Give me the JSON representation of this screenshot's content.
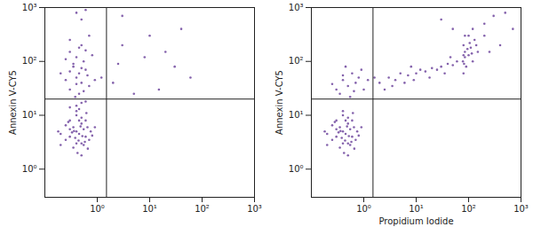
{
  "chart_data": [
    {
      "type": "scatter",
      "log": true,
      "color": "#5b2d90",
      "marker": "dot",
      "ylabel": "Annexin V-CY5",
      "xlim": [
        0.1,
        1000
      ],
      "ylim": [
        0.3,
        1000
      ],
      "xticks": [
        {
          "value": 1,
          "label": "10⁰"
        },
        {
          "value": 10,
          "label": "10¹"
        },
        {
          "value": 100,
          "label": "10²"
        },
        {
          "value": 1000,
          "label": "10³"
        }
      ],
      "yticks": [
        {
          "value": 1,
          "label": "10⁰"
        },
        {
          "value": 10,
          "label": "10¹"
        },
        {
          "value": 100,
          "label": "10²"
        },
        {
          "value": 1000,
          "label": "10³"
        }
      ],
      "quadrant_x": 1.5,
      "quadrant_y": 20,
      "x": [
        0.3,
        0.4,
        0.5,
        0.35,
        0.45,
        0.55,
        0.25,
        0.6,
        0.4,
        0.5,
        0.3,
        0.65,
        0.2,
        0.45,
        0.35,
        0.55,
        0.7,
        0.4,
        0.3,
        0.5,
        0.25,
        0.6,
        0.75,
        0.8,
        0.2,
        0.38,
        0.48,
        0.33,
        0.58,
        0.42,
        0.28,
        0.62,
        0.52,
        0.36,
        0.44,
        0.9,
        0.18,
        0.5,
        0.66,
        0.4,
        0.3,
        0.4,
        0.5,
        0.35,
        0.45,
        0.55,
        0.25,
        0.6,
        0.4,
        0.3,
        0.5,
        0.7,
        0.2,
        0.45,
        0.35,
        0.65,
        0.55,
        0.3,
        0.8,
        0.4,
        0.6,
        0.25,
        0.5,
        0.38,
        0.9,
        0.7,
        0.3,
        0.45,
        0.4,
        0.5,
        0.3,
        0.6,
        0.45,
        0.4,
        0.6,
        0.5,
        2,
        3,
        5,
        10,
        20,
        40,
        30,
        60,
        3,
        8,
        15,
        1.2,
        2.5
      ],
      "values": [
        4,
        5,
        3,
        6,
        4.5,
        5.5,
        3.5,
        4,
        3,
        7,
        5.5,
        6,
        4.5,
        8,
        2.5,
        2.8,
        3.5,
        10,
        8,
        9,
        6.5,
        8,
        5,
        4.2,
        2.8,
        3.8,
        6.2,
        4.8,
        3.2,
        2,
        7.5,
        11,
        4.1,
        5.1,
        3.4,
        6,
        5,
        1.8,
        2.4,
        12,
        30,
        50,
        40,
        80,
        60,
        100,
        45,
        70,
        120,
        150,
        200,
        35,
        60,
        25,
        90,
        55,
        28,
        250,
        130,
        38,
        160,
        110,
        75,
        22,
        45,
        300,
        65,
        180,
        15,
        17,
        14,
        18,
        13,
        800,
        900,
        600,
        40,
        200,
        25,
        300,
        150,
        400,
        80,
        50,
        700,
        120,
        30,
        50,
        90
      ]
    },
    {
      "type": "scatter",
      "log": true,
      "color": "#5b2d90",
      "marker": "dot",
      "xlabel": "Propidium Iodide",
      "ylabel": "Annexin V-CY5",
      "xlim": [
        0.1,
        1000
      ],
      "ylim": [
        0.3,
        1000
      ],
      "xticks": [
        {
          "value": 1,
          "label": "10⁰"
        },
        {
          "value": 10,
          "label": "10¹"
        },
        {
          "value": 100,
          "label": "10²"
        },
        {
          "value": 1000,
          "label": "10³"
        }
      ],
      "yticks": [
        {
          "value": 1,
          "label": "10⁰"
        },
        {
          "value": 10,
          "label": "10¹"
        },
        {
          "value": 100,
          "label": "10²"
        },
        {
          "value": 1000,
          "label": "10³"
        }
      ],
      "quadrant_x": 1.5,
      "quadrant_y": 20,
      "x": [
        0.3,
        0.4,
        0.5,
        0.35,
        0.45,
        0.55,
        0.25,
        0.6,
        0.4,
        0.5,
        0.3,
        0.65,
        0.2,
        0.45,
        0.35,
        0.55,
        0.7,
        0.4,
        0.3,
        0.5,
        0.25,
        0.6,
        0.75,
        0.8,
        0.2,
        0.38,
        0.48,
        0.33,
        0.58,
        0.42,
        0.28,
        0.62,
        0.52,
        0.36,
        0.44,
        0.9,
        0.18,
        0.5,
        0.66,
        0.4,
        0.3,
        0.4,
        0.5,
        0.6,
        0.35,
        0.45,
        0.55,
        0.7,
        0.8,
        1.0,
        1.2,
        0.25,
        0.65,
        0.9,
        0.4,
        2,
        3,
        4,
        5,
        7,
        10,
        12,
        15,
        20,
        25,
        30,
        40,
        50,
        60,
        2.5,
        6,
        8,
        18,
        35,
        45,
        1.6,
        3.5,
        9,
        80,
        82,
        85,
        78,
        80,
        85,
        90,
        100,
        110,
        120,
        130,
        140,
        150,
        100,
        120,
        85,
        95,
        105,
        115,
        80,
        200,
        300,
        500,
        200,
        400,
        50,
        30,
        250,
        700
      ],
      "values": [
        4,
        5,
        3,
        6,
        4.5,
        5.5,
        3.5,
        4,
        3,
        7,
        5.5,
        6,
        4.5,
        8,
        2.5,
        2.8,
        3.5,
        10,
        8,
        9,
        6.5,
        8,
        5,
        4.2,
        2.8,
        3.8,
        6.2,
        4.8,
        3.2,
        2,
        7.5,
        11,
        4.1,
        5.1,
        3.4,
        6,
        5,
        1.8,
        2.4,
        12,
        30,
        45,
        35,
        60,
        25,
        80,
        22,
        40,
        50,
        30,
        45,
        38,
        28,
        70,
        55,
        40,
        50,
        45,
        60,
        55,
        60,
        70,
        65,
        75,
        70,
        80,
        90,
        85,
        100,
        30,
        40,
        80,
        50,
        60,
        120,
        50,
        35,
        45,
        60,
        90,
        120,
        100,
        200,
        150,
        80,
        130,
        180,
        100,
        250,
        200,
        150,
        300,
        400,
        300,
        170,
        220,
        140,
        130,
        500,
        700,
        800,
        300,
        200,
        400,
        600,
        150,
        400
      ]
    }
  ]
}
